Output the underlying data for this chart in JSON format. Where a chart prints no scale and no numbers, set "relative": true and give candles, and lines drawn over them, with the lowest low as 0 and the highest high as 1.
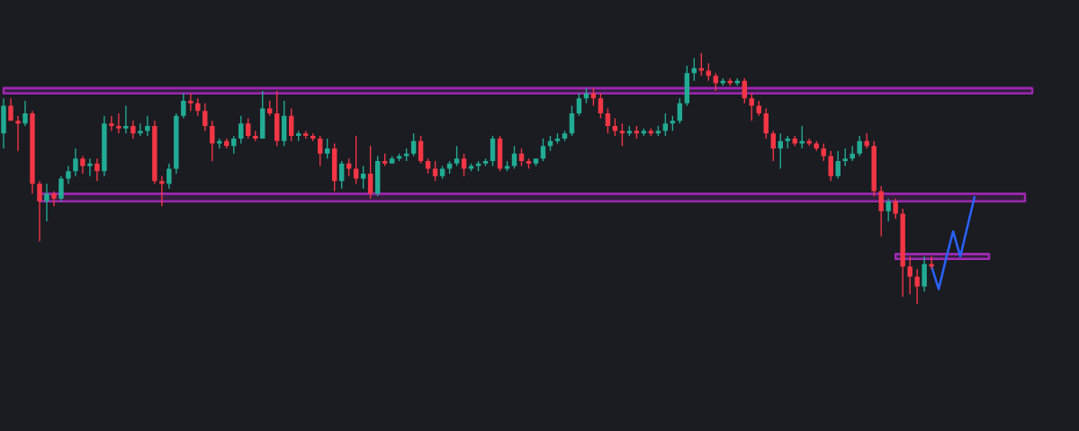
{
  "chart_data": {
    "type": "candlestick",
    "relative": true,
    "categories": [
      null,
      null,
      null,
      null,
      null,
      null,
      null,
      null,
      null,
      null,
      null,
      null,
      null,
      null,
      null,
      null,
      null,
      null,
      null,
      null,
      null,
      null,
      null,
      null,
      null,
      null,
      null,
      null,
      null,
      null,
      null,
      null,
      null,
      null,
      null,
      null,
      null,
      null,
      null,
      null,
      null,
      null,
      null,
      null,
      null,
      null,
      null,
      null,
      null,
      null,
      null,
      null,
      null,
      null,
      null,
      null,
      null,
      null,
      null,
      null,
      null,
      null,
      null,
      null,
      null,
      null,
      null,
      null,
      null,
      null,
      null,
      null,
      null,
      null,
      null,
      null,
      null,
      null,
      null,
      null,
      null,
      null,
      null,
      null,
      null,
      null,
      null,
      null,
      null,
      null,
      null,
      null,
      null,
      null,
      null,
      null,
      null,
      null,
      null,
      null,
      null,
      null,
      null,
      null,
      null,
      null,
      null,
      null,
      null,
      null,
      null,
      null,
      null,
      null,
      null,
      null,
      null,
      null,
      null,
      null,
      null,
      null,
      null,
      null,
      null,
      null,
      null,
      null,
      null,
      null,
      null,
      null,
      null,
      null,
      null,
      null,
      null,
      null,
      null,
      null,
      null,
      null,
      null,
      null,
      null,
      null,
      null,
      null,
      null,
      null
    ],
    "ohlc": [
      [
        0.68,
        0.82,
        0.62,
        0.79
      ],
      [
        0.79,
        0.82,
        0.73,
        0.73
      ],
      [
        0.73,
        0.75,
        0.61,
        0.72
      ],
      [
        0.72,
        0.81,
        0.71,
        0.76
      ],
      [
        0.76,
        0.77,
        0.44,
        0.48
      ],
      [
        0.48,
        0.49,
        0.25,
        0.41
      ],
      [
        0.41,
        0.48,
        0.33,
        0.44
      ],
      [
        0.44,
        0.45,
        0.39,
        0.42
      ],
      [
        0.42,
        0.51,
        0.41,
        0.5
      ],
      [
        0.5,
        0.55,
        0.48,
        0.53
      ],
      [
        0.53,
        0.62,
        0.51,
        0.58
      ],
      [
        0.58,
        0.59,
        0.52,
        0.55
      ],
      [
        0.55,
        0.58,
        0.51,
        0.56
      ],
      [
        0.56,
        0.58,
        0.49,
        0.53
      ],
      [
        0.53,
        0.75,
        0.51,
        0.72
      ],
      [
        0.72,
        0.75,
        0.69,
        0.71
      ],
      [
        0.71,
        0.76,
        0.68,
        0.7
      ],
      [
        0.7,
        0.79,
        0.68,
        0.71
      ],
      [
        0.71,
        0.73,
        0.66,
        0.68
      ],
      [
        0.68,
        0.72,
        0.67,
        0.69
      ],
      [
        0.69,
        0.75,
        0.67,
        0.71
      ],
      [
        0.71,
        0.73,
        0.48,
        0.49
      ],
      [
        0.49,
        0.51,
        0.39,
        0.48
      ],
      [
        0.48,
        0.56,
        0.46,
        0.54
      ],
      [
        0.54,
        0.76,
        0.52,
        0.75
      ],
      [
        0.75,
        0.84,
        0.74,
        0.81
      ],
      [
        0.81,
        0.84,
        0.77,
        0.8
      ],
      [
        0.8,
        0.82,
        0.75,
        0.77
      ],
      [
        0.77,
        0.8,
        0.69,
        0.71
      ],
      [
        0.71,
        0.73,
        0.57,
        0.64
      ],
      [
        0.64,
        0.66,
        0.62,
        0.65
      ],
      [
        0.65,
        0.66,
        0.62,
        0.63
      ],
      [
        0.63,
        0.67,
        0.6,
        0.66
      ],
      [
        0.66,
        0.75,
        0.64,
        0.72
      ],
      [
        0.72,
        0.74,
        0.66,
        0.67
      ],
      [
        0.67,
        0.69,
        0.65,
        0.66
      ],
      [
        0.66,
        0.85,
        0.66,
        0.78
      ],
      [
        0.78,
        0.81,
        0.75,
        0.76
      ],
      [
        0.76,
        0.85,
        0.63,
        0.65
      ],
      [
        0.65,
        0.81,
        0.63,
        0.75
      ],
      [
        0.75,
        0.78,
        0.65,
        0.67
      ],
      [
        0.67,
        0.69,
        0.65,
        0.68
      ],
      [
        0.68,
        0.69,
        0.66,
        0.67
      ],
      [
        0.67,
        0.68,
        0.65,
        0.66
      ],
      [
        0.66,
        0.67,
        0.55,
        0.6
      ],
      [
        0.6,
        0.66,
        0.58,
        0.62
      ],
      [
        0.62,
        0.64,
        0.45,
        0.49
      ],
      [
        0.49,
        0.57,
        0.46,
        0.56
      ],
      [
        0.56,
        0.58,
        0.51,
        0.54
      ],
      [
        0.54,
        0.67,
        0.48,
        0.5
      ],
      [
        0.5,
        0.55,
        0.46,
        0.52
      ],
      [
        0.52,
        0.63,
        0.42,
        0.44
      ],
      [
        0.44,
        0.59,
        0.43,
        0.57
      ],
      [
        0.57,
        0.6,
        0.55,
        0.56
      ],
      [
        0.56,
        0.59,
        0.56,
        0.58
      ],
      [
        0.58,
        0.6,
        0.57,
        0.59
      ],
      [
        0.59,
        0.62,
        0.57,
        0.6
      ],
      [
        0.6,
        0.68,
        0.59,
        0.65
      ],
      [
        0.65,
        0.67,
        0.56,
        0.57
      ],
      [
        0.57,
        0.58,
        0.52,
        0.54
      ],
      [
        0.54,
        0.57,
        0.49,
        0.51
      ],
      [
        0.51,
        0.55,
        0.5,
        0.54
      ],
      [
        0.54,
        0.57,
        0.52,
        0.56
      ],
      [
        0.56,
        0.63,
        0.55,
        0.58
      ],
      [
        0.58,
        0.6,
        0.51,
        0.54
      ],
      [
        0.54,
        0.56,
        0.53,
        0.55
      ],
      [
        0.55,
        0.57,
        0.53,
        0.56
      ],
      [
        0.56,
        0.58,
        0.55,
        0.57
      ],
      [
        0.57,
        0.67,
        0.55,
        0.66
      ],
      [
        0.66,
        0.67,
        0.53,
        0.54
      ],
      [
        0.54,
        0.57,
        0.53,
        0.55
      ],
      [
        0.55,
        0.63,
        0.54,
        0.6
      ],
      [
        0.6,
        0.62,
        0.55,
        0.57
      ],
      [
        0.57,
        0.58,
        0.54,
        0.56
      ],
      [
        0.56,
        0.58,
        0.55,
        0.58
      ],
      [
        0.58,
        0.66,
        0.57,
        0.63
      ],
      [
        0.63,
        0.67,
        0.61,
        0.65
      ],
      [
        0.65,
        0.68,
        0.64,
        0.66
      ],
      [
        0.66,
        0.69,
        0.65,
        0.68
      ],
      [
        0.68,
        0.79,
        0.67,
        0.76
      ],
      [
        0.76,
        0.84,
        0.75,
        0.82
      ],
      [
        0.82,
        0.86,
        0.8,
        0.84
      ],
      [
        0.84,
        0.86,
        0.79,
        0.82
      ],
      [
        0.82,
        0.84,
        0.74,
        0.76
      ],
      [
        0.76,
        0.78,
        0.68,
        0.71
      ],
      [
        0.71,
        0.74,
        0.67,
        0.69
      ],
      [
        0.69,
        0.72,
        0.63,
        0.68
      ],
      [
        0.68,
        0.71,
        0.67,
        0.69
      ],
      [
        0.69,
        0.71,
        0.66,
        0.68
      ],
      [
        0.68,
        0.7,
        0.67,
        0.69
      ],
      [
        0.69,
        0.7,
        0.67,
        0.68
      ],
      [
        0.68,
        0.71,
        0.67,
        0.69
      ],
      [
        0.69,
        0.76,
        0.67,
        0.72
      ],
      [
        0.72,
        0.75,
        0.69,
        0.73
      ],
      [
        0.73,
        0.82,
        0.72,
        0.8
      ],
      [
        0.8,
        0.95,
        0.79,
        0.92
      ],
      [
        0.92,
        0.98,
        0.89,
        0.94
      ],
      [
        0.94,
        1.0,
        0.91,
        0.93
      ],
      [
        0.93,
        0.96,
        0.89,
        0.91
      ],
      [
        0.91,
        0.92,
        0.85,
        0.88
      ],
      [
        0.88,
        0.9,
        0.87,
        0.89
      ],
      [
        0.89,
        0.9,
        0.87,
        0.88
      ],
      [
        0.88,
        0.9,
        0.87,
        0.89
      ],
      [
        0.89,
        0.9,
        0.8,
        0.82
      ],
      [
        0.82,
        0.84,
        0.73,
        0.79
      ],
      [
        0.79,
        0.81,
        0.75,
        0.76
      ],
      [
        0.76,
        0.78,
        0.66,
        0.68
      ],
      [
        0.68,
        0.69,
        0.57,
        0.62
      ],
      [
        0.62,
        0.68,
        0.54,
        0.65
      ],
      [
        0.65,
        0.67,
        0.62,
        0.66
      ],
      [
        0.66,
        0.67,
        0.63,
        0.64
      ],
      [
        0.64,
        0.71,
        0.62,
        0.65
      ],
      [
        0.65,
        0.66,
        0.63,
        0.64
      ],
      [
        0.64,
        0.65,
        0.61,
        0.62
      ],
      [
        0.62,
        0.64,
        0.57,
        0.59
      ],
      [
        0.59,
        0.61,
        0.49,
        0.51
      ],
      [
        0.51,
        0.61,
        0.5,
        0.57
      ],
      [
        0.57,
        0.62,
        0.55,
        0.58
      ],
      [
        0.58,
        0.63,
        0.57,
        0.6
      ],
      [
        0.6,
        0.67,
        0.59,
        0.65
      ],
      [
        0.65,
        0.68,
        0.62,
        0.63
      ],
      [
        0.63,
        0.65,
        0.43,
        0.45
      ],
      [
        0.45,
        0.47,
        0.27,
        0.37
      ],
      [
        0.37,
        0.42,
        0.33,
        0.41
      ],
      [
        0.41,
        0.42,
        0.34,
        0.36
      ],
      [
        0.36,
        0.38,
        0.03,
        0.15
      ],
      [
        0.15,
        0.19,
        0.04,
        0.11
      ],
      [
        0.11,
        0.14,
        0.0,
        0.07
      ],
      [
        0.07,
        0.19,
        0.05,
        0.16
      ],
      [
        0.16,
        0.19,
        0.14,
        0.15
      ],
      null,
      null,
      null,
      null,
      null,
      null,
      null,
      null,
      null,
      null,
      null,
      null,
      null,
      null,
      null,
      null,
      null,
      null,
      null,
      null
    ],
    "colors": [
      "#22ab94",
      "#f23645",
      "#f23645",
      "#22ab94",
      "#f23645",
      "#f23645",
      "#22ab94",
      "#f23645",
      "#22ab94",
      "#22ab94",
      "#22ab94",
      "#f23645",
      "#22ab94",
      "#f23645",
      "#22ab94",
      "#f23645",
      "#f23645",
      "#22ab94",
      "#f23645",
      "#22ab94",
      "#22ab94",
      "#f23645",
      "#f23645",
      "#22ab94",
      "#22ab94",
      "#22ab94",
      "#f23645",
      "#f23645",
      "#f23645",
      "#f23645",
      "#22ab94",
      "#f23645",
      "#22ab94",
      "#22ab94",
      "#f23645",
      "#f23645",
      "#22ab94",
      "#f23645",
      "#f23645",
      "#22ab94",
      "#f23645",
      "#22ab94",
      "#f23645",
      "#f23645",
      "#f23645",
      "#22ab94",
      "#f23645",
      "#22ab94",
      "#f23645",
      "#f23645",
      "#22ab94",
      "#f23645",
      "#22ab94",
      "#f23645",
      "#22ab94",
      "#22ab94",
      "#22ab94",
      "#22ab94",
      "#f23645",
      "#f23645",
      "#f23645",
      "#22ab94",
      "#22ab94",
      "#22ab94",
      "#f23645",
      "#22ab94",
      "#22ab94",
      "#22ab94",
      "#22ab94",
      "#f23645",
      "#22ab94",
      "#22ab94",
      "#f23645",
      "#f23645",
      "#22ab94",
      "#22ab94",
      "#22ab94",
      "#22ab94",
      "#22ab94",
      "#22ab94",
      "#22ab94",
      "#22ab94",
      "#f23645",
      "#f23645",
      "#f23645",
      "#f23645",
      "#f23645",
      "#22ab94",
      "#f23645",
      "#22ab94",
      "#f23645",
      "#22ab94",
      "#22ab94",
      "#22ab94",
      "#22ab94",
      "#22ab94",
      "#22ab94",
      "#f23645",
      "#f23645",
      "#f23645",
      "#22ab94",
      "#f23645",
      "#22ab94",
      "#f23645",
      "#f23645",
      "#f23645",
      "#f23645",
      "#f23645",
      "#22ab94",
      "#22ab94",
      "#f23645",
      "#22ab94",
      "#f23645",
      "#f23645",
      "#f23645",
      "#f23645",
      "#22ab94",
      "#22ab94",
      "#22ab94",
      "#22ab94",
      "#f23645",
      "#f23645",
      "#f23645",
      "#22ab94",
      "#f23645",
      "#f23645",
      "#f23645",
      "#f23645",
      "#22ab94",
      "#f23645",
      null,
      null,
      null,
      null,
      null,
      null,
      null,
      null,
      null,
      null,
      null,
      null,
      null,
      null,
      null,
      null,
      null,
      null,
      null,
      null
    ],
    "series": [
      {
        "type": "line",
        "color": "#9c27b0",
        "values": [
          0.86,
          0.86,
          0.86,
          0.86,
          0.86,
          0.86,
          0.86,
          0.86,
          0.86,
          0.86,
          0.86,
          0.86,
          0.86,
          0.86,
          0.86,
          0.86,
          0.86,
          0.86,
          0.86,
          0.86,
          0.86,
          0.86,
          0.86,
          0.86,
          0.86,
          0.86,
          0.86,
          0.86,
          0.86,
          0.86,
          0.86,
          0.86,
          0.86,
          0.86,
          0.86,
          0.86,
          0.86,
          0.86,
          0.86,
          0.86,
          0.86,
          0.86,
          0.86,
          0.86,
          0.86,
          0.86,
          0.86,
          0.86,
          0.86,
          0.86,
          0.86,
          0.86,
          0.86,
          0.86,
          0.86,
          0.86,
          0.86,
          0.86,
          0.86,
          0.86,
          0.86,
          0.86,
          0.86,
          0.86,
          0.86,
          0.86,
          0.86,
          0.86,
          0.86,
          0.86,
          0.86,
          0.86,
          0.86,
          0.86,
          0.86,
          0.86,
          0.86,
          0.86,
          0.86,
          0.86,
          0.86,
          0.86,
          0.86,
          0.86,
          0.86,
          0.86,
          0.86,
          0.86,
          0.86,
          0.86,
          0.86,
          0.86,
          0.86,
          0.86,
          0.86,
          0.86,
          0.86,
          0.86,
          0.86,
          0.86,
          0.86,
          0.86,
          0.86,
          0.86,
          0.86,
          0.86,
          0.86,
          0.86,
          0.86,
          0.86,
          0.86,
          0.86,
          0.86,
          0.86,
          0.86,
          0.86,
          0.86,
          0.86,
          0.86,
          0.86,
          0.86,
          0.86,
          0.86,
          0.86,
          0.86,
          0.86,
          0.86,
          0.86,
          0.86,
          0.86,
          0.86,
          0.86,
          0.86,
          0.86,
          0.86,
          0.86,
          0.86,
          0.86,
          0.86,
          0.86,
          0.86,
          0.86,
          0.86,
          0.86,
          null,
          null,
          null,
          null,
          null,
          null
        ],
        "upper": [
          0.86,
          0.86,
          0.86,
          0.86,
          0.86,
          0.86,
          0.86,
          0.86,
          0.86,
          0.86,
          0.86,
          0.86,
          0.86,
          0.86,
          0.86,
          0.86,
          0.86,
          0.86,
          0.86,
          0.86,
          0.86,
          0.86,
          0.86,
          0.86,
          0.86,
          0.86,
          0.86,
          0.86,
          0.86,
          0.86,
          0.86,
          0.86,
          0.86,
          0.86,
          0.86,
          0.86,
          0.86,
          0.86,
          0.86,
          0.86,
          0.86,
          0.86,
          0.86,
          0.86,
          0.86,
          0.86,
          0.86,
          0.86,
          0.86,
          0.86,
          0.86,
          0.86,
          0.86,
          0.86,
          0.86,
          0.86,
          0.86,
          0.86,
          0.86,
          0.86,
          0.86,
          0.86,
          0.86,
          0.86,
          0.86,
          0.86,
          0.86,
          0.86,
          0.86,
          0.86,
          0.86,
          0.86,
          0.86,
          0.86,
          0.86,
          0.86,
          0.86,
          0.86,
          0.86,
          0.86,
          0.86,
          0.86,
          0.86,
          0.86,
          0.86,
          0.86,
          0.86,
          0.86,
          0.86,
          0.86,
          0.86,
          0.86,
          0.86,
          0.86,
          0.86,
          0.86,
          0.86,
          0.86,
          0.86,
          0.86,
          0.86,
          0.86,
          0.86,
          0.86,
          0.86,
          0.86,
          0.86,
          0.86,
          0.86,
          0.86,
          0.86,
          0.86,
          0.86,
          0.86,
          0.86,
          0.86,
          0.86,
          0.86,
          0.86,
          0.86,
          0.86,
          0.86,
          0.86,
          0.86,
          0.86,
          0.86,
          0.86,
          0.86,
          0.86,
          0.86,
          0.86,
          0.86,
          0.86,
          0.86,
          0.86,
          0.86,
          0.86,
          0.86,
          0.86,
          0.86,
          0.86,
          0.86,
          0.86,
          0.86,
          null,
          null,
          null,
          null,
          null,
          null
        ],
        "lower": [
          0.84,
          0.84,
          0.84,
          0.84,
          0.84,
          0.84,
          0.84,
          0.84,
          0.84,
          0.84,
          0.84,
          0.84,
          0.84,
          0.84,
          0.84,
          0.84,
          0.84,
          0.84,
          0.84,
          0.84,
          0.84,
          0.84,
          0.84,
          0.84,
          0.84,
          0.84,
          0.84,
          0.84,
          0.84,
          0.84,
          0.84,
          0.84,
          0.84,
          0.84,
          0.84,
          0.84,
          0.84,
          0.84,
          0.84,
          0.84,
          0.84,
          0.84,
          0.84,
          0.84,
          0.84,
          0.84,
          0.84,
          0.84,
          0.84,
          0.84,
          0.84,
          0.84,
          0.84,
          0.84,
          0.84,
          0.84,
          0.84,
          0.84,
          0.84,
          0.84,
          0.84,
          0.84,
          0.84,
          0.84,
          0.84,
          0.84,
          0.84,
          0.84,
          0.84,
          0.84,
          0.84,
          0.84,
          0.84,
          0.84,
          0.84,
          0.84,
          0.84,
          0.84,
          0.84,
          0.84,
          0.84,
          0.84,
          0.84,
          0.84,
          0.84,
          0.84,
          0.84,
          0.84,
          0.84,
          0.84,
          0.84,
          0.84,
          0.84,
          0.84,
          0.84,
          0.84,
          0.84,
          0.84,
          0.84,
          0.84,
          0.84,
          0.84,
          0.84,
          0.84,
          0.84,
          0.84,
          0.84,
          0.84,
          0.84,
          0.84,
          0.84,
          0.84,
          0.84,
          0.84,
          0.84,
          0.84,
          0.84,
          0.84,
          0.84,
          0.84,
          0.84,
          0.84,
          0.84,
          0.84,
          0.84,
          0.84,
          0.84,
          0.84,
          0.84,
          0.84,
          0.84,
          0.84,
          0.84,
          0.84,
          0.84,
          0.84,
          0.84,
          0.84,
          0.84,
          0.84,
          0.84,
          0.84,
          0.84,
          0.84,
          null,
          null,
          null,
          null,
          null,
          null
        ]
      },
      {
        "type": "line",
        "color": "#9a27ae",
        "values": [
          null,
          null,
          null,
          null,
          null,
          0.44,
          0.44,
          0.44,
          0.44,
          0.44,
          0.44,
          0.44,
          0.44,
          0.44,
          0.44,
          0.44,
          0.44,
          0.44,
          0.44,
          0.44,
          0.44,
          0.44,
          0.44,
          0.44,
          0.44,
          0.44,
          0.44,
          0.44,
          0.44,
          0.44,
          0.44,
          0.44,
          0.44,
          0.44,
          0.44,
          0.44,
          0.44,
          0.44,
          0.44,
          0.44,
          0.44,
          0.44,
          0.44,
          0.44,
          0.44,
          0.44,
          0.44,
          0.44,
          0.44,
          0.44,
          0.44,
          0.44,
          0.44,
          0.44,
          0.44,
          0.44,
          0.44,
          0.44,
          0.44,
          0.44,
          0.44,
          0.44,
          0.44,
          0.44,
          0.44,
          0.44,
          0.44,
          0.44,
          0.44,
          0.44,
          0.44,
          0.44,
          0.44,
          0.44,
          0.44,
          0.44,
          0.44,
          0.44,
          0.44,
          0.44,
          0.44,
          0.44,
          0.44,
          0.44,
          0.44,
          0.44,
          0.44,
          0.44,
          0.44,
          0.44,
          0.44,
          0.44,
          0.44,
          0.44,
          0.44,
          0.44,
          0.44,
          0.44,
          0.44,
          0.44,
          0.44,
          0.44,
          0.44,
          0.44,
          0.44,
          0.44,
          0.44,
          0.44,
          0.44,
          0.44,
          0.44,
          0.44,
          0.44,
          0.44,
          0.44,
          0.44,
          0.44,
          0.44,
          0.44,
          0.44,
          0.44,
          0.44,
          0.44,
          0.44,
          0.44,
          0.44,
          0.44,
          0.44,
          0.44,
          0.44,
          0.44,
          0.44,
          0.44,
          0.44,
          0.44,
          0.44,
          0.44,
          0.44,
          0.44,
          0.44,
          0.44,
          0.44,
          0.44,
          null,
          null,
          null,
          null,
          null,
          null,
          null
        ],
        "upper": [
          null,
          null,
          null,
          null,
          null,
          0.44,
          0.44,
          0.44,
          0.44,
          0.44,
          0.44,
          0.44,
          0.44,
          0.44,
          0.44,
          0.44,
          0.44,
          0.44,
          0.44,
          0.44,
          0.44,
          0.44,
          0.44,
          0.44,
          0.44,
          0.44,
          0.44,
          0.44,
          0.44,
          0.44,
          0.44,
          0.44,
          0.44,
          0.44,
          0.44,
          0.44,
          0.44,
          0.44,
          0.44,
          0.44,
          0.44,
          0.44,
          0.44,
          0.44,
          0.44,
          0.44,
          0.44,
          0.44,
          0.44,
          0.44,
          0.44,
          0.44,
          0.44,
          0.44,
          0.44,
          0.44,
          0.44,
          0.44,
          0.44,
          0.44,
          0.44,
          0.44,
          0.44,
          0.44,
          0.44,
          0.44,
          0.44,
          0.44,
          0.44,
          0.44,
          0.44,
          0.44,
          0.44,
          0.44,
          0.44,
          0.44,
          0.44,
          0.44,
          0.44,
          0.44,
          0.44,
          0.44,
          0.44,
          0.44,
          0.44,
          0.44,
          0.44,
          0.44,
          0.44,
          0.44,
          0.44,
          0.44,
          0.44,
          0.44,
          0.44,
          0.44,
          0.44,
          0.44,
          0.44,
          0.44,
          0.44,
          0.44,
          0.44,
          0.44,
          0.44,
          0.44,
          0.44,
          0.44,
          0.44,
          0.44,
          0.44,
          0.44,
          0.44,
          0.44,
          0.44,
          0.44,
          0.44,
          0.44,
          0.44,
          0.44,
          0.44,
          0.44,
          0.44,
          0.44,
          0.44,
          0.44,
          0.44,
          0.44,
          0.44,
          0.44,
          0.44,
          0.44,
          0.44,
          0.44,
          0.44,
          0.44,
          0.44,
          0.44,
          0.44,
          0.44,
          0.44,
          0.44,
          0.44,
          null,
          null,
          null,
          null,
          null,
          null,
          null
        ],
        "lower": [
          null,
          null,
          null,
          null,
          null,
          0.41,
          0.41,
          0.41,
          0.41,
          0.41,
          0.41,
          0.41,
          0.41,
          0.41,
          0.41,
          0.41,
          0.41,
          0.41,
          0.41,
          0.41,
          0.41,
          0.41,
          0.41,
          0.41,
          0.41,
          0.41,
          0.41,
          0.41,
          0.41,
          0.41,
          0.41,
          0.41,
          0.41,
          0.41,
          0.41,
          0.41,
          0.41,
          0.41,
          0.41,
          0.41,
          0.41,
          0.41,
          0.41,
          0.41,
          0.41,
          0.41,
          0.41,
          0.41,
          0.41,
          0.41,
          0.41,
          0.41,
          0.41,
          0.41,
          0.41,
          0.41,
          0.41,
          0.41,
          0.41,
          0.41,
          0.41,
          0.41,
          0.41,
          0.41,
          0.41,
          0.41,
          0.41,
          0.41,
          0.41,
          0.41,
          0.41,
          0.41,
          0.41,
          0.41,
          0.41,
          0.41,
          0.41,
          0.41,
          0.41,
          0.41,
          0.41,
          0.41,
          0.41,
          0.41,
          0.41,
          0.41,
          0.41,
          0.41,
          0.41,
          0.41,
          0.41,
          0.41,
          0.41,
          0.41,
          0.41,
          0.41,
          0.41,
          0.41,
          0.41,
          0.41,
          0.41,
          0.41,
          0.41,
          0.41,
          0.41,
          0.41,
          0.41,
          0.41,
          0.41,
          0.41,
          0.41,
          0.41,
          0.41,
          0.41,
          0.41,
          0.41,
          0.41,
          0.41,
          0.41,
          0.41,
          0.41,
          0.41,
          0.41,
          0.41,
          0.41,
          0.41,
          0.41,
          0.41,
          0.41,
          0.41,
          0.41,
          0.41,
          0.41,
          0.41,
          0.41,
          0.41,
          0.41,
          0.41,
          0.41,
          0.41,
          0.41,
          0.41,
          0.41,
          null,
          null,
          null,
          null,
          null,
          null,
          null
        ]
      },
      {
        "type": "line",
        "color": "#a02ab4",
        "values": [
          null,
          null,
          null,
          null,
          null,
          null,
          null,
          null,
          null,
          null,
          null,
          null,
          null,
          null,
          null,
          null,
          null,
          null,
          null,
          null,
          null,
          null,
          null,
          null,
          null,
          null,
          null,
          null,
          null,
          null,
          null,
          null,
          null,
          null,
          null,
          null,
          null,
          null,
          null,
          null,
          null,
          null,
          null,
          null,
          null,
          null,
          null,
          null,
          null,
          null,
          null,
          null,
          null,
          null,
          null,
          null,
          null,
          null,
          null,
          null,
          null,
          null,
          null,
          null,
          null,
          null,
          null,
          null,
          null,
          null,
          null,
          null,
          null,
          null,
          null,
          null,
          null,
          null,
          null,
          null,
          null,
          null,
          null,
          null,
          null,
          null,
          null,
          null,
          null,
          null,
          null,
          null,
          null,
          null,
          null,
          null,
          null,
          null,
          null,
          null,
          null,
          null,
          null,
          null,
          null,
          null,
          null,
          null,
          null,
          null,
          null,
          null,
          null,
          null,
          null,
          null,
          null,
          null,
          null,
          null,
          null,
          null,
          null,
          null,
          0.2,
          0.2,
          0.2,
          0.2,
          0.2,
          0.2,
          0.2,
          0.2,
          0.2,
          0.2,
          0.2,
          0.2,
          0.2,
          0.2,
          null,
          null,
          null,
          null,
          null,
          null,
          null,
          null,
          null,
          null,
          null,
          null
        ],
        "upper": [
          null,
          null,
          null,
          null,
          null,
          null,
          null,
          null,
          null,
          null,
          null,
          null,
          null,
          null,
          null,
          null,
          null,
          null,
          null,
          null,
          null,
          null,
          null,
          null,
          null,
          null,
          null,
          null,
          null,
          null,
          null,
          null,
          null,
          null,
          null,
          null,
          null,
          null,
          null,
          null,
          null,
          null,
          null,
          null,
          null,
          null,
          null,
          null,
          null,
          null,
          null,
          null,
          null,
          null,
          null,
          null,
          null,
          null,
          null,
          null,
          null,
          null,
          null,
          null,
          null,
          null,
          null,
          null,
          null,
          null,
          null,
          null,
          null,
          null,
          null,
          null,
          null,
          null,
          null,
          null,
          null,
          null,
          null,
          null,
          null,
          null,
          null,
          null,
          null,
          null,
          null,
          null,
          null,
          null,
          null,
          null,
          null,
          null,
          null,
          null,
          null,
          null,
          null,
          null,
          null,
          null,
          null,
          null,
          null,
          null,
          null,
          null,
          null,
          null,
          null,
          null,
          null,
          null,
          null,
          null,
          null,
          null,
          null,
          null,
          0.2,
          0.2,
          0.2,
          0.2,
          0.2,
          0.2,
          0.2,
          0.2,
          0.2,
          0.2,
          0.2,
          0.2,
          0.2,
          0.2,
          null,
          null,
          null,
          null,
          null,
          null,
          null,
          null,
          null,
          null,
          null,
          null
        ],
        "lower": [
          null,
          null,
          null,
          null,
          null,
          null,
          null,
          null,
          null,
          null,
          null,
          null,
          null,
          null,
          null,
          null,
          null,
          null,
          null,
          null,
          null,
          null,
          null,
          null,
          null,
          null,
          null,
          null,
          null,
          null,
          null,
          null,
          null,
          null,
          null,
          null,
          null,
          null,
          null,
          null,
          null,
          null,
          null,
          null,
          null,
          null,
          null,
          null,
          null,
          null,
          null,
          null,
          null,
          null,
          null,
          null,
          null,
          null,
          null,
          null,
          null,
          null,
          null,
          null,
          null,
          null,
          null,
          null,
          null,
          null,
          null,
          null,
          null,
          null,
          null,
          null,
          null,
          null,
          null,
          null,
          null,
          null,
          null,
          null,
          null,
          null,
          null,
          null,
          null,
          null,
          null,
          null,
          null,
          null,
          null,
          null,
          null,
          null,
          null,
          null,
          null,
          null,
          null,
          null,
          null,
          null,
          null,
          null,
          null,
          null,
          null,
          null,
          null,
          null,
          null,
          null,
          null,
          null,
          null,
          null,
          null,
          null,
          null,
          null,
          0.18,
          0.18,
          0.18,
          0.18,
          0.18,
          0.18,
          0.18,
          0.18,
          0.18,
          0.18,
          0.18,
          0.18,
          0.18,
          0.18,
          null,
          null,
          null,
          null,
          null,
          null,
          null,
          null,
          null,
          null,
          null,
          null
        ]
      },
      {
        "type": "line",
        "color": "#2962ff",
        "values": [
          null,
          null,
          null,
          null,
          null,
          null,
          null,
          null,
          null,
          null,
          null,
          null,
          null,
          null,
          null,
          null,
          null,
          null,
          null,
          null,
          null,
          null,
          null,
          null,
          null,
          null,
          null,
          null,
          null,
          null,
          null,
          null,
          null,
          null,
          null,
          null,
          null,
          null,
          null,
          null,
          null,
          null,
          null,
          null,
          null,
          null,
          null,
          null,
          null,
          null,
          null,
          null,
          null,
          null,
          null,
          null,
          null,
          null,
          null,
          null,
          null,
          null,
          null,
          null,
          null,
          null,
          null,
          null,
          null,
          null,
          null,
          null,
          null,
          null,
          null,
          null,
          null,
          null,
          null,
          null,
          null,
          null,
          null,
          null,
          null,
          null,
          null,
          null,
          null,
          null,
          null,
          null,
          null,
          null,
          null,
          null,
          null,
          null,
          null,
          null,
          null,
          null,
          null,
          null,
          null,
          null,
          null,
          null,
          null,
          null,
          null,
          null,
          null,
          null,
          null,
          null,
          null,
          null,
          null,
          null,
          null,
          null,
          null,
          null,
          null,
          null,
          null,
          null,
          null,
          0.15,
          0.06,
          0.18,
          0.29,
          0.19,
          0.31,
          0.43,
          null,
          null,
          null,
          null,
          null,
          null,
          null,
          null,
          null,
          null,
          null,
          null,
          null,
          null
        ]
      }
    ]
  }
}
